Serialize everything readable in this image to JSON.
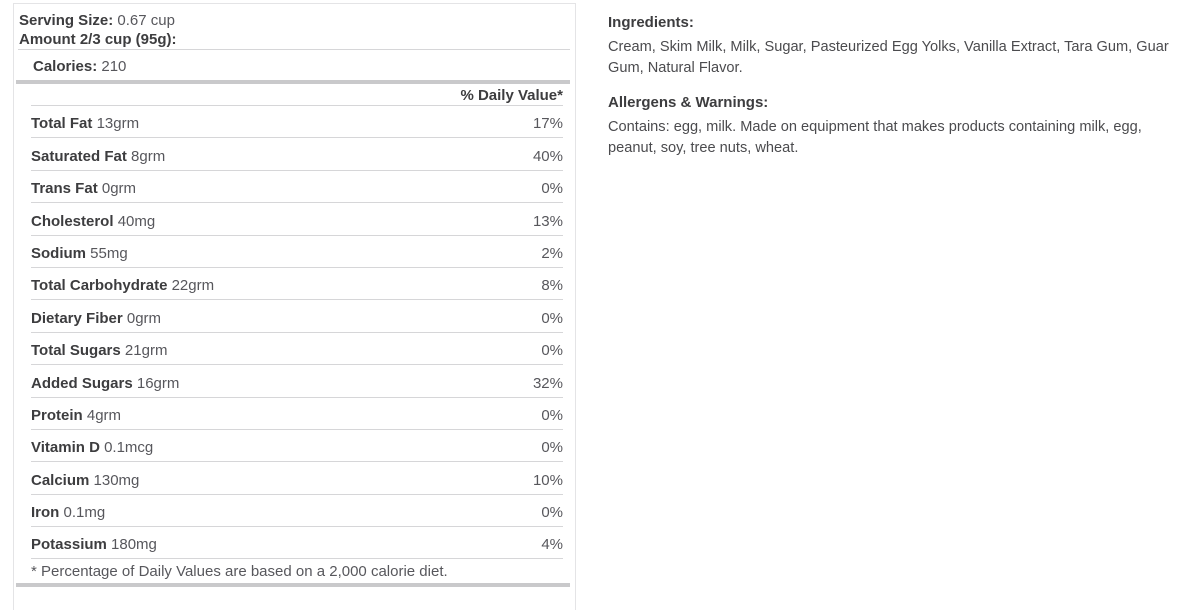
{
  "nutrition_panel": {
    "serving_size_label": "Serving Size:",
    "serving_size_value": "0.67 cup",
    "amount_label": "Amount 2/3 cup (95g):",
    "calories_label": "Calories:",
    "calories_value": "210",
    "daily_value_header": "% Daily Value*",
    "rows": [
      {
        "name": "Total Fat",
        "amount": "13grm",
        "dv": "17%"
      },
      {
        "name": "Saturated Fat",
        "amount": "8grm",
        "dv": "40%"
      },
      {
        "name": "Trans Fat",
        "amount": "0grm",
        "dv": "0%"
      },
      {
        "name": "Cholesterol",
        "amount": "40mg",
        "dv": "13%"
      },
      {
        "name": "Sodium",
        "amount": "55mg",
        "dv": "2%"
      },
      {
        "name": "Total Carbohydrate",
        "amount": "22grm",
        "dv": "8%"
      },
      {
        "name": "Dietary Fiber",
        "amount": "0grm",
        "dv": "0%"
      },
      {
        "name": "Total Sugars",
        "amount": "21grm",
        "dv": "0%"
      },
      {
        "name": "Added Sugars",
        "amount": "16grm",
        "dv": "32%"
      },
      {
        "name": "Protein",
        "amount": "4grm",
        "dv": "0%"
      },
      {
        "name": "Vitamin D",
        "amount": "0.1mcg",
        "dv": "0%"
      },
      {
        "name": "Calcium",
        "amount": "130mg",
        "dv": "10%"
      },
      {
        "name": "Iron",
        "amount": "0.1mg",
        "dv": "0%"
      },
      {
        "name": "Potassium",
        "amount": "180mg",
        "dv": "4%"
      }
    ],
    "footnote": "* Percentage of Daily Values are based on a 2,000 calorie diet."
  },
  "info_column": {
    "ingredients_heading": "Ingredients:",
    "ingredients_text": "Cream, Skim Milk, Milk, Sugar, Pasteurized Egg Yolks, Vanilla Extract, Tara Gum, Guar Gum, Natural Flavor.",
    "allergens_heading": "Allergens & Warnings:",
    "allergens_text": "Contains: egg, milk. Made on equipment that makes products containing milk, egg, peanut, soy, tree nuts, wheat."
  },
  "colors": {
    "text_strong": "#3d3d3f",
    "text_regular": "#57575c",
    "divider_thin": "#d6d6d8",
    "divider_thick": "#c9c9cb",
    "panel_border": "#e4e4e6"
  }
}
